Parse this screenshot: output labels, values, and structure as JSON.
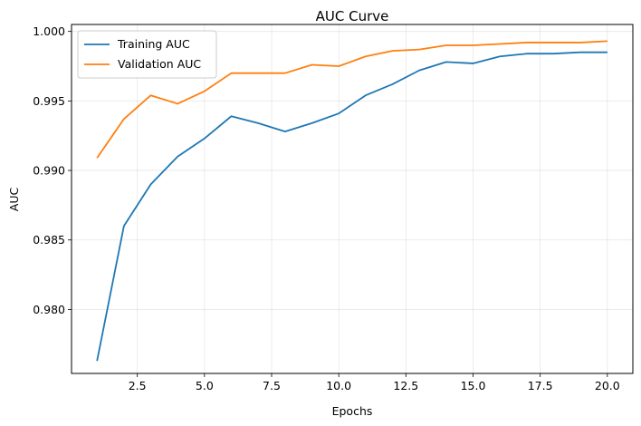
{
  "chart_data": {
    "type": "line",
    "title": "AUC Curve",
    "xlabel": "Epochs",
    "ylabel": "AUC",
    "xlim": [
      0.05,
      20.95
    ],
    "ylim": [
      0.9754,
      1.0005
    ],
    "xticks": [
      2.5,
      5.0,
      7.5,
      10.0,
      12.5,
      15.0,
      17.5,
      20.0
    ],
    "xtick_labels": [
      "2.5",
      "5.0",
      "7.5",
      "10.0",
      "12.5",
      "15.0",
      "17.5",
      "20.0"
    ],
    "yticks": [
      0.98,
      0.985,
      0.99,
      0.995,
      1.0
    ],
    "ytick_labels": [
      "0.980",
      "0.985",
      "0.990",
      "0.995",
      "1.000"
    ],
    "grid": true,
    "legend_position": "upper-left",
    "x": [
      1,
      2,
      3,
      4,
      5,
      6,
      7,
      8,
      9,
      10,
      11,
      12,
      13,
      14,
      15,
      16,
      17,
      18,
      19,
      20
    ],
    "series": [
      {
        "name": "Training AUC",
        "color": "#1f77b4",
        "values": [
          0.9763,
          0.986,
          0.989,
          0.991,
          0.9923,
          0.9939,
          0.9934,
          0.9928,
          0.9934,
          0.9941,
          0.9954,
          0.9962,
          0.9972,
          0.9978,
          0.9977,
          0.9982,
          0.9984,
          0.9984,
          0.9985,
          0.9985
        ]
      },
      {
        "name": "Validation AUC",
        "color": "#ff7f0e",
        "values": [
          0.9909,
          0.9937,
          0.9954,
          0.9948,
          0.9957,
          0.997,
          0.997,
          0.997,
          0.9976,
          0.9975,
          0.9982,
          0.9986,
          0.9987,
          0.999,
          0.999,
          0.9991,
          0.9992,
          0.9992,
          0.9992,
          0.9993
        ]
      }
    ]
  }
}
